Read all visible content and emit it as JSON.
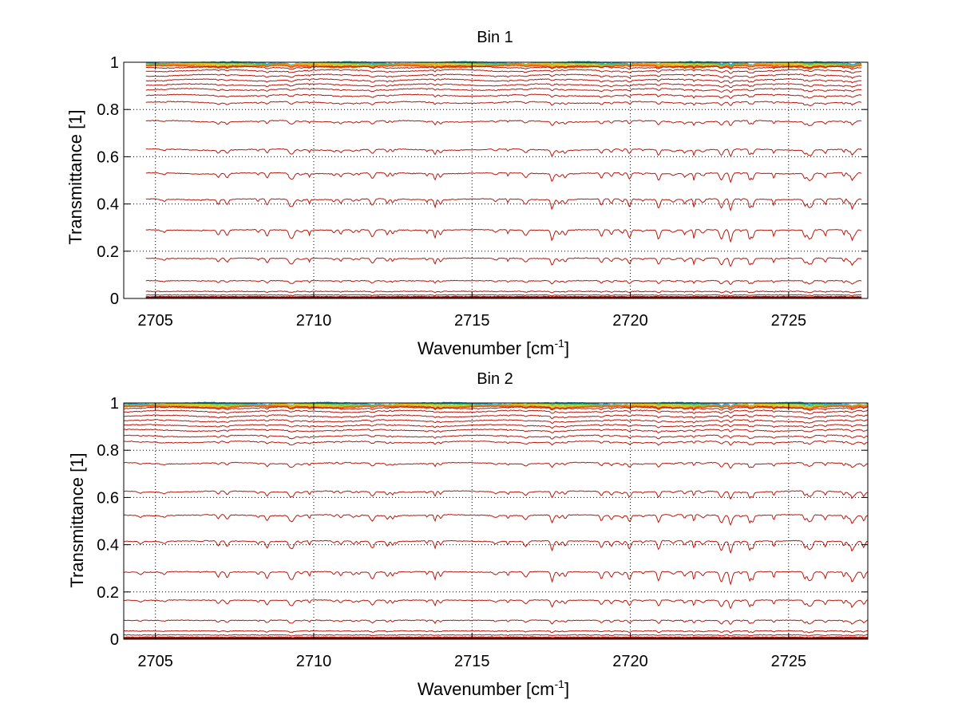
{
  "chart_data": [
    {
      "type": "line",
      "title": "Bin 1",
      "xlabel": "Wavenumber [cm",
      "xlabel_sup": "-1",
      "xlabel_end": "]",
      "ylabel": "Transmittance [1]",
      "xlim": [
        2704,
        2727.5
      ],
      "ylim": [
        0,
        1
      ],
      "xticks": [
        2705,
        2710,
        2715,
        2720,
        2725
      ],
      "xtick_labels": [
        "2705",
        "2710",
        "2715",
        "2720",
        "2725"
      ],
      "yticks": [
        0,
        0.2,
        0.4,
        0.6,
        0.8,
        1
      ],
      "ytick_labels": [
        "0",
        "0.2",
        "0.4",
        "0.6",
        "0.8",
        "1"
      ],
      "grid": true,
      "data_range": [
        2704.7,
        2727.3
      ],
      "near_unity_levels": [
        0.998,
        0.995,
        0.992,
        0.989,
        0.986,
        0.983
      ],
      "near_unity_colors": [
        "#2aa6d6",
        "#3cbf6a",
        "#a6cc2a",
        "#e8c21a",
        "#f08a1a",
        "#e85a12"
      ],
      "series_levels": [
        0.98,
        0.965,
        0.945,
        0.925,
        0.905,
        0.885,
        0.86,
        0.83,
        0.75,
        0.63,
        0.53,
        0.42,
        0.29,
        0.17,
        0.075,
        0.03,
        0.015,
        0.008,
        0.004,
        0.002,
        0.001
      ],
      "series_color": "#b8170c"
    },
    {
      "type": "line",
      "title": "Bin 2",
      "xlabel": "Wavenumber [cm",
      "xlabel_sup": "-1",
      "xlabel_end": "]",
      "ylabel": "Transmittance [1]",
      "xlim": [
        2704,
        2727.5
      ],
      "ylim": [
        0,
        1
      ],
      "xticks": [
        2705,
        2710,
        2715,
        2720,
        2725
      ],
      "xtick_labels": [
        "2705",
        "2710",
        "2715",
        "2720",
        "2725"
      ],
      "yticks": [
        0,
        0.2,
        0.4,
        0.6,
        0.8,
        1
      ],
      "ytick_labels": [
        "0",
        "0.2",
        "0.4",
        "0.6",
        "0.8",
        "1"
      ],
      "grid": true,
      "data_range": [
        2704.0,
        2727.5
      ],
      "near_unity_levels": [
        0.998,
        0.995,
        0.992,
        0.989,
        0.986,
        0.983
      ],
      "near_unity_colors": [
        "#2aa6d6",
        "#3cbf6a",
        "#a6cc2a",
        "#e8c21a",
        "#f08a1a",
        "#e85a12"
      ],
      "series_levels": [
        0.98,
        0.965,
        0.945,
        0.925,
        0.905,
        0.885,
        0.86,
        0.835,
        0.745,
        0.625,
        0.525,
        0.415,
        0.285,
        0.165,
        0.08,
        0.035,
        0.018,
        0.009,
        0.005,
        0.002,
        0.001
      ],
      "series_color": "#b8170c"
    }
  ]
}
